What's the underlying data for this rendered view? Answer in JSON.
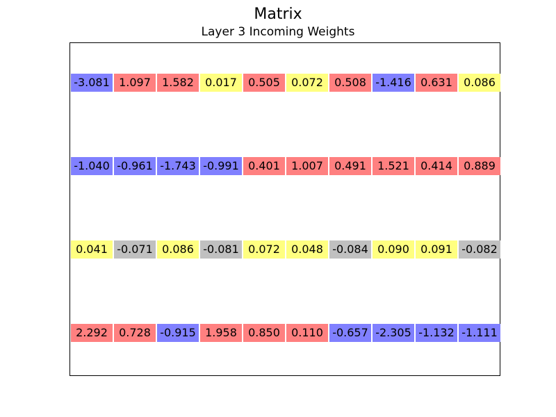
{
  "title": "Matrix",
  "subtitle": "Layer 3 Incoming Weights",
  "colors": {
    "positive_large": "#ff8080",
    "positive_small": "#ffff80",
    "negative_large": "#8080ff",
    "negative_small": "#c0c0c0"
  },
  "chart_data": {
    "type": "table",
    "title": "Matrix",
    "subtitle": "Layer 3 Incoming Weights",
    "rows": [
      [
        "-3.081",
        "1.097",
        "1.582",
        "0.017",
        "0.505",
        "0.072",
        "0.508",
        "-1.416",
        "0.631",
        "0.086"
      ],
      [
        "-1.040",
        "-0.961",
        "-1.743",
        "-0.991",
        "0.401",
        "1.007",
        "0.491",
        "1.521",
        "0.414",
        "0.889"
      ],
      [
        "0.041",
        "-0.071",
        "0.086",
        "-0.081",
        "0.072",
        "0.048",
        "-0.084",
        "0.090",
        "0.091",
        "-0.082"
      ],
      [
        "2.292",
        "0.728",
        "-0.915",
        "1.958",
        "0.850",
        "0.110",
        "-0.657",
        "-2.305",
        "-1.132",
        "-1.111"
      ]
    ]
  }
}
